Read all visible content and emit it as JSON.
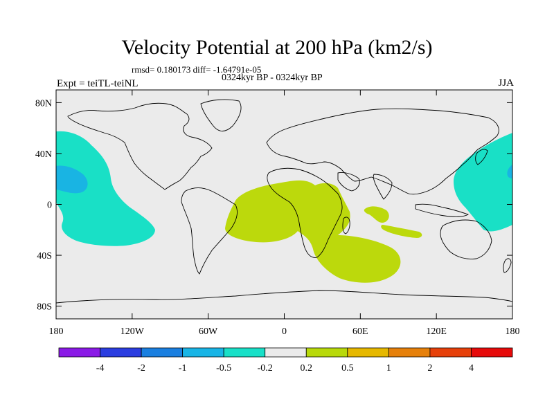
{
  "title": "Velocity Potential at 200 hPa (km2/s)",
  "stats": "rmsd= 0.180173 diff= -1.64791e-05",
  "experiment": "Expt = teiTL-teiNL",
  "period": "0324kyr BP - 0324kyr BP",
  "season": "JJA",
  "map": {
    "projection": "cylindrical equidistant",
    "background_color": "#ebebeb",
    "lat_labels": [
      "80N",
      "40N",
      "0",
      "40S",
      "80S"
    ],
    "lat_values": [
      80,
      40,
      0,
      -40,
      -80
    ],
    "lon_labels": [
      "180",
      "120W",
      "60W",
      "0",
      "60E",
      "120E",
      "180"
    ],
    "lon_values": [
      -180,
      -120,
      -60,
      0,
      60,
      120,
      180
    ]
  },
  "colorbar": {
    "labels": [
      "-4",
      "-2",
      "-1",
      "-0.5",
      "-0.2",
      "0.2",
      "0.5",
      "1",
      "2",
      "4"
    ],
    "colors": [
      "#8a1ae6",
      "#2b3de0",
      "#1a7fe0",
      "#19b5e6",
      "#19e0c8",
      "#ebebeb",
      "#b8d90a",
      "#e6b800",
      "#e6800a",
      "#e6400a",
      "#e60a0a"
    ]
  }
}
